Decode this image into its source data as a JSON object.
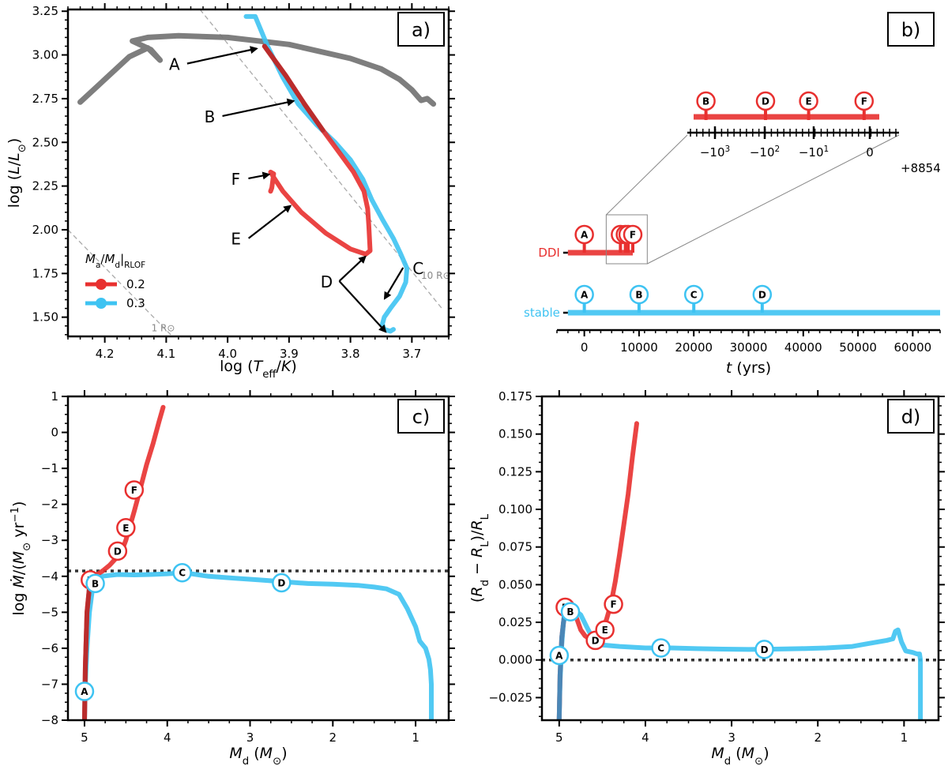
{
  "colors": {
    "red": "#e8302f",
    "blue": "#3ec3f2",
    "gray": "#707070",
    "darkred": "#b52a2a"
  },
  "chart_data": [
    {
      "panel": "a",
      "type": "line",
      "tag": "a)",
      "xlabel": "log (T_eff/K)",
      "ylabel": "log (L/L_sun)",
      "xlim": [
        4.26,
        3.64
      ],
      "ylim": [
        1.39,
        3.26
      ],
      "xticks": [
        "4.2",
        "4.1",
        "4.0",
        "3.9",
        "3.8",
        "3.7"
      ],
      "xtick_values": [
        4.2,
        4.1,
        4.0,
        3.9,
        3.8,
        3.7
      ],
      "yticks": [
        "1.50",
        "1.75",
        "2.00",
        "2.25",
        "2.50",
        "2.75",
        "3.00",
        "3.25"
      ],
      "ytick_values": [
        1.5,
        1.75,
        2.0,
        2.25,
        2.5,
        2.75,
        3.0,
        3.25
      ],
      "legend_title": "M_a/M_d|RLOF",
      "series": [
        {
          "name": "0.2",
          "color": "red",
          "x": [
            3.94,
            3.905,
            3.875,
            3.845,
            3.82,
            3.795,
            3.778,
            3.772,
            3.77,
            3.768,
            3.775,
            3.8,
            3.84,
            3.88,
            3.91,
            3.925,
            3.93,
            3.925,
            3.928,
            3.93
          ],
          "y": [
            3.05,
            2.88,
            2.72,
            2.57,
            2.45,
            2.33,
            2.22,
            2.12,
            2.02,
            1.88,
            1.86,
            1.89,
            1.98,
            2.1,
            2.22,
            2.3,
            2.33,
            2.32,
            2.24,
            2.22
          ]
        },
        {
          "name": "0.3",
          "color": "blue",
          "x": [
            3.97,
            3.955,
            3.935,
            3.91,
            3.885,
            3.855,
            3.825,
            3.8,
            3.78,
            3.765,
            3.748,
            3.73,
            3.718,
            3.708,
            3.71,
            3.72,
            3.735,
            3.745,
            3.748,
            3.745,
            3.735,
            3.73
          ],
          "y": [
            3.22,
            3.22,
            3.05,
            2.87,
            2.72,
            2.6,
            2.5,
            2.4,
            2.29,
            2.17,
            2.06,
            1.95,
            1.86,
            1.78,
            1.7,
            1.62,
            1.55,
            1.5,
            1.46,
            1.43,
            1.42,
            1.43
          ]
        },
        {
          "name": "",
          "color": "gray",
          "x": [
            4.24,
            4.2,
            4.16,
            4.13,
            4.11,
            4.125,
            4.155,
            4.13,
            4.08,
            4.0,
            3.9,
            3.8,
            3.75,
            3.72,
            3.7,
            3.685,
            3.675,
            3.665
          ],
          "y": [
            2.73,
            2.86,
            2.99,
            3.04,
            2.97,
            3.03,
            3.08,
            3.1,
            3.11,
            3.1,
            3.06,
            2.98,
            2.92,
            2.86,
            2.8,
            2.74,
            2.75,
            2.72
          ]
        }
      ],
      "annotations": [
        {
          "label": "A",
          "x": 3.945,
          "y": 3.05
        },
        {
          "label": "B",
          "x": 3.885,
          "y": 2.75
        },
        {
          "label": "C",
          "x": 3.74,
          "y": 1.72
        },
        {
          "label": "D",
          "x": 3.768,
          "y": 1.86
        },
        {
          "label": "D",
          "x": 3.735,
          "y": 1.43
        },
        {
          "label": "E",
          "x": 3.89,
          "y": 2.15
        },
        {
          "label": "F",
          "x": 3.925,
          "y": 2.33
        }
      ],
      "radius_lines": [
        {
          "label": "10 R_sun"
        },
        {
          "label": "1 R_sun"
        }
      ]
    },
    {
      "panel": "b",
      "type": "timeline",
      "tag": "b)",
      "xlabel": "t (yrs)",
      "xlim": [
        -5000,
        65000
      ],
      "xticks": [
        "0",
        "10000",
        "20000",
        "30000",
        "40000",
        "50000",
        "60000"
      ],
      "xtick_values": [
        0,
        10000,
        20000,
        30000,
        40000,
        50000,
        60000
      ],
      "rows": [
        {
          "label": "DDI",
          "color": "red",
          "start": -3000,
          "end": 8854,
          "markers": [
            {
              "label": "A",
              "t": 0
            },
            {
              "label": "B",
              "t": 6600
            },
            {
              "label": "D",
              "t": 7500
            },
            {
              "label": "E",
              "t": 8000
            },
            {
              "label": "F",
              "t": 8854
            }
          ]
        },
        {
          "label": "stable",
          "color": "blue",
          "start": -3000,
          "end": 65000,
          "markers": [
            {
              "label": "A",
              "t": 0
            },
            {
              "label": "B",
              "t": 10000
            },
            {
              "label": "C",
              "t": 20000
            },
            {
              "label": "D",
              "t": 32500
            }
          ]
        }
      ],
      "inset": {
        "offset_label": "+8854",
        "ticks": [
          "-10^3",
          "-10^2",
          "-10^1",
          "0"
        ],
        "markers": [
          {
            "label": "B",
            "pos": 0.06
          },
          {
            "label": "D",
            "pos": 0.35
          },
          {
            "label": "E",
            "pos": 0.56
          },
          {
            "label": "F",
            "pos": 0.83
          }
        ]
      }
    },
    {
      "panel": "c",
      "type": "line",
      "tag": "c)",
      "xlabel": "M_d (M_sun)",
      "ylabel": "log Mdot/(M_sun yr^-1)",
      "xlim": [
        5.2,
        0.6
      ],
      "ylim": [
        -8,
        1
      ],
      "xticks": [
        "5",
        "4",
        "3",
        "2",
        "1"
      ],
      "xtick_values": [
        5,
        4,
        3,
        2,
        1
      ],
      "yticks": [
        "-8",
        "-7",
        "-6",
        "-5",
        "-4",
        "-3",
        "-2",
        "-1",
        "0",
        "1"
      ],
      "ytick_values": [
        -8,
        -7,
        -6,
        -5,
        -4,
        -3,
        -2,
        -1,
        0,
        1
      ],
      "hline": -3.85,
      "series": [
        {
          "name": "0.2",
          "color": "red",
          "x": [
            5.0,
            4.99,
            4.97,
            4.94,
            4.9,
            4.85,
            4.78,
            4.7,
            4.62,
            4.55,
            4.5,
            4.45,
            4.4,
            4.33,
            4.25,
            4.17,
            4.1,
            4.05
          ],
          "y": [
            -8.0,
            -6.5,
            -5.0,
            -4.3,
            -4.05,
            -3.95,
            -3.85,
            -3.7,
            -3.5,
            -3.3,
            -3.0,
            -2.6,
            -2.2,
            -1.6,
            -0.9,
            -0.3,
            0.3,
            0.7
          ]
        },
        {
          "name": "0.3",
          "color": "blue",
          "x": [
            5.0,
            4.99,
            4.97,
            4.94,
            4.9,
            4.8,
            4.6,
            4.4,
            4.2,
            4.0,
            3.8,
            3.5,
            3.2,
            2.9,
            2.6,
            2.3,
            2.0,
            1.7,
            1.5,
            1.35,
            1.2,
            1.1,
            1.0,
            0.95,
            0.88,
            0.84,
            0.82,
            0.81,
            0.81
          ],
          "y": [
            -8.0,
            -7.0,
            -6.0,
            -5.0,
            -4.3,
            -4.0,
            -3.95,
            -3.96,
            -3.95,
            -3.93,
            -3.9,
            -4.0,
            -4.05,
            -4.1,
            -4.15,
            -4.2,
            -4.22,
            -4.25,
            -4.3,
            -4.35,
            -4.5,
            -4.9,
            -5.4,
            -5.8,
            -6.0,
            -6.3,
            -6.6,
            -7.0,
            -8.0
          ]
        }
      ],
      "markers": [
        {
          "label": "A",
          "color": "blue",
          "x": 5.0,
          "y": -7.2
        },
        {
          "label": "B",
          "color": "red",
          "x": 4.93,
          "y": -4.1
        },
        {
          "label": "B",
          "color": "blue",
          "x": 4.87,
          "y": -4.2
        },
        {
          "label": "C",
          "color": "blue",
          "x": 3.82,
          "y": -3.9
        },
        {
          "label": "D",
          "color": "blue",
          "x": 2.62,
          "y": -4.18
        },
        {
          "label": "D",
          "color": "red",
          "x": 4.6,
          "y": -3.3
        },
        {
          "label": "E",
          "color": "red",
          "x": 4.5,
          "y": -2.65
        },
        {
          "label": "F",
          "color": "red",
          "x": 4.4,
          "y": -1.6
        }
      ]
    },
    {
      "panel": "d",
      "type": "line",
      "tag": "d)",
      "xlabel": "M_d (M_sun)",
      "ylabel": "(R_d - R_L)/R_L",
      "xlim": [
        5.2,
        0.6
      ],
      "ylim": [
        -0.04,
        0.175
      ],
      "xticks": [
        "5",
        "4",
        "3",
        "2",
        "1"
      ],
      "xtick_values": [
        5,
        4,
        3,
        2,
        1
      ],
      "yticks": [
        "-0.025",
        "0.000",
        "0.025",
        "0.050",
        "0.075",
        "0.100",
        "0.125",
        "0.150",
        "0.175"
      ],
      "ytick_values": [
        -0.025,
        0.0,
        0.025,
        0.05,
        0.075,
        0.1,
        0.125,
        0.15,
        0.175
      ],
      "hline": 0.0,
      "series": [
        {
          "name": "0.2",
          "color": "red",
          "x": [
            5.0,
            4.99,
            4.97,
            4.94,
            4.9,
            4.85,
            4.8,
            4.75,
            4.7,
            4.65,
            4.6,
            4.55,
            4.5,
            4.45,
            4.4,
            4.35,
            4.3,
            4.25,
            4.2,
            4.15,
            4.1
          ],
          "y": [
            -0.04,
            -0.01,
            0.015,
            0.03,
            0.035,
            0.034,
            0.028,
            0.02,
            0.016,
            0.014,
            0.014,
            0.016,
            0.02,
            0.027,
            0.037,
            0.052,
            0.07,
            0.09,
            0.11,
            0.135,
            0.157
          ]
        },
        {
          "name": "0.3",
          "color": "blue",
          "x": [
            5.0,
            4.99,
            4.97,
            4.95,
            4.92,
            4.88,
            4.82,
            4.75,
            4.68,
            4.6,
            4.5,
            4.3,
            4.0,
            3.7,
            3.4,
            3.1,
            2.8,
            2.5,
            2.2,
            1.9,
            1.6,
            1.4,
            1.2,
            1.13,
            1.1,
            1.07,
            1.03,
            0.98,
            0.9,
            0.85,
            0.82,
            0.81,
            0.81
          ],
          "y": [
            -0.04,
            -0.015,
            0.01,
            0.025,
            0.031,
            0.033,
            0.033,
            0.03,
            0.022,
            0.013,
            0.01,
            0.009,
            0.008,
            0.008,
            0.0075,
            0.0072,
            0.007,
            0.0072,
            0.0075,
            0.008,
            0.009,
            0.011,
            0.013,
            0.014,
            0.019,
            0.02,
            0.012,
            0.006,
            0.005,
            0.004,
            0.004,
            0.0,
            -0.04
          ]
        }
      ],
      "markers": [
        {
          "label": "A",
          "color": "blue",
          "x": 5.0,
          "y": 0.003
        },
        {
          "label": "B",
          "color": "red",
          "x": 4.93,
          "y": 0.035
        },
        {
          "label": "B",
          "color": "blue",
          "x": 4.87,
          "y": 0.032
        },
        {
          "label": "C",
          "color": "blue",
          "x": 3.82,
          "y": 0.008
        },
        {
          "label": "D",
          "color": "blue",
          "x": 2.62,
          "y": 0.007
        },
        {
          "label": "D",
          "color": "red",
          "x": 4.58,
          "y": 0.013
        },
        {
          "label": "E",
          "color": "red",
          "x": 4.47,
          "y": 0.02
        },
        {
          "label": "F",
          "color": "red",
          "x": 4.37,
          "y": 0.037
        }
      ]
    }
  ]
}
